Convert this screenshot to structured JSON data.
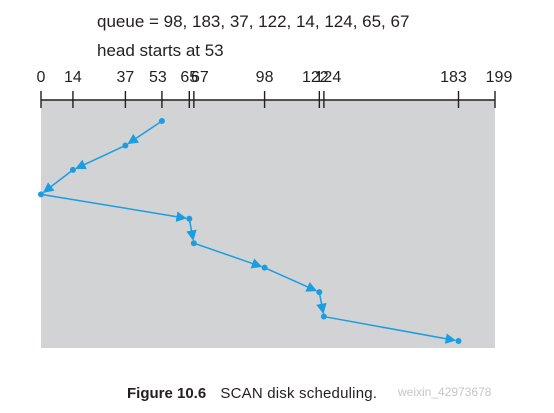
{
  "header": {
    "queue_text": "queue = 98, 183, 37, 122, 14, 124, 65, 67",
    "head_text": "head starts at 53"
  },
  "axis": {
    "min": 0,
    "max": 199,
    "ticks": [
      0,
      14,
      37,
      53,
      65,
      67,
      98,
      122,
      124,
      183,
      199
    ],
    "tick_labels": [
      "0",
      "14",
      "37",
      "53",
      "65",
      "67",
      "98",
      "122",
      "124",
      "183",
      "199"
    ]
  },
  "path": {
    "cylinders": [
      53,
      37,
      14,
      0,
      65,
      67,
      98,
      122,
      124,
      183
    ],
    "labels": [
      "",
      "",
      "",
      "",
      "",
      "",
      "",
      "",
      "",
      ""
    ]
  },
  "colors": {
    "panel": "#d1d3d4",
    "line": "#1b9de2",
    "axis": "#231f20"
  },
  "caption": {
    "number": "Figure 10.6",
    "title": "SCAN disk scheduling."
  },
  "watermark": "weixin_42973678"
}
